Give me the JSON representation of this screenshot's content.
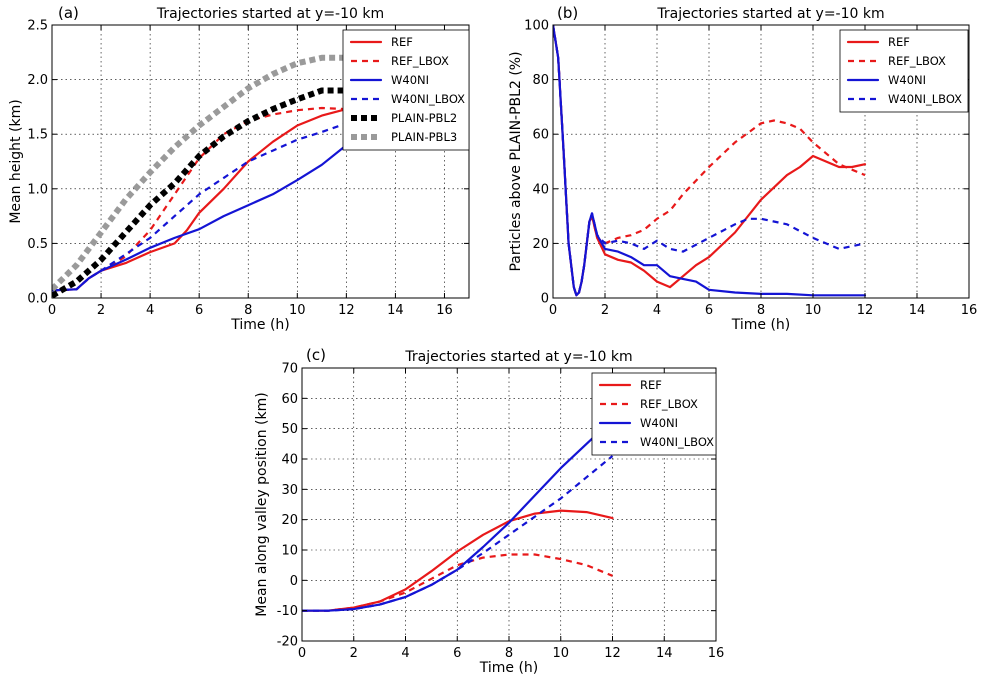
{
  "chart_data": [
    {
      "type": "line",
      "panel_label": "(a)",
      "title": "Trajectories started at y=-10 km",
      "xlabel": "Time (h)",
      "ylabel": "Mean height (km)",
      "xlim": [
        0,
        17
      ],
      "ylim": [
        0,
        2.5
      ],
      "xticks": [
        0,
        2,
        4,
        6,
        8,
        10,
        12,
        14,
        16
      ],
      "yticks": [
        0.0,
        0.5,
        1.0,
        1.5,
        2.0,
        2.5
      ],
      "ytick_labels": [
        "0.0",
        "0.5",
        "1.0",
        "1.5",
        "2.0",
        "2.5"
      ],
      "grid": true,
      "legend_position": "top-right",
      "series": [
        {
          "name": "REF",
          "color": "#e8191a",
          "style": "solid",
          "x": [
            0,
            1,
            1.5,
            2,
            3,
            4,
            5,
            5.5,
            6,
            7,
            8,
            9,
            10,
            11,
            12
          ],
          "y": [
            0.07,
            0.08,
            0.18,
            0.25,
            0.32,
            0.42,
            0.5,
            0.62,
            0.78,
            1.0,
            1.25,
            1.43,
            1.58,
            1.67,
            1.73
          ]
        },
        {
          "name": "REF_LBOX",
          "color": "#e8191a",
          "style": "dashed",
          "x": [
            0,
            1,
            1.5,
            2,
            3,
            4,
            5,
            6,
            7,
            8,
            9,
            10,
            11,
            12
          ],
          "y": [
            0.07,
            0.08,
            0.18,
            0.25,
            0.38,
            0.62,
            0.95,
            1.28,
            1.5,
            1.62,
            1.68,
            1.72,
            1.74,
            1.73
          ]
        },
        {
          "name": "W40NI",
          "color": "#1414d4",
          "style": "solid",
          "x": [
            0,
            1,
            1.5,
            2,
            3,
            4,
            5,
            6,
            7,
            8,
            9,
            10,
            11,
            12
          ],
          "y": [
            0.07,
            0.08,
            0.18,
            0.25,
            0.35,
            0.46,
            0.55,
            0.63,
            0.75,
            0.85,
            0.95,
            1.08,
            1.22,
            1.4
          ]
        },
        {
          "name": "W40NI_LBOX",
          "color": "#1414d4",
          "style": "dashed",
          "x": [
            0,
            1,
            1.5,
            2,
            3,
            4,
            5,
            6,
            7,
            8,
            9,
            10,
            11,
            12
          ],
          "y": [
            0.07,
            0.08,
            0.18,
            0.25,
            0.4,
            0.55,
            0.75,
            0.95,
            1.1,
            1.25,
            1.35,
            1.45,
            1.52,
            1.6
          ]
        },
        {
          "name": "PLAIN-PBL2",
          "color": "#000000",
          "style": "thick-dotted",
          "x": [
            0,
            1,
            2,
            3,
            4,
            5,
            6,
            7,
            8,
            9,
            10,
            11,
            12
          ],
          "y": [
            0.02,
            0.15,
            0.35,
            0.6,
            0.85,
            1.05,
            1.3,
            1.48,
            1.62,
            1.73,
            1.82,
            1.9,
            1.9
          ]
        },
        {
          "name": "PLAIN-PBL3",
          "color": "#9a9a9a",
          "style": "thick-dotted",
          "x": [
            0,
            1,
            2,
            3,
            4,
            5,
            6,
            7,
            8,
            9,
            10,
            11,
            12
          ],
          "y": [
            0.08,
            0.3,
            0.6,
            0.9,
            1.15,
            1.38,
            1.58,
            1.75,
            1.92,
            2.05,
            2.15,
            2.2,
            2.2
          ]
        }
      ]
    },
    {
      "type": "line",
      "panel_label": "(b)",
      "title": "Trajectories started at y=-10 km",
      "xlabel": "Time (h)",
      "ylabel": "Particles above PLAIN-PBL2 (%)",
      "xlim": [
        0,
        16
      ],
      "ylim": [
        0,
        100
      ],
      "xticks": [
        0,
        2,
        4,
        6,
        8,
        10,
        12,
        14,
        16
      ],
      "yticks": [
        0,
        20,
        40,
        60,
        80,
        100
      ],
      "grid": true,
      "legend_position": "top-right",
      "series": [
        {
          "name": "REF",
          "color": "#e8191a",
          "style": "solid",
          "x": [
            0,
            0.2,
            0.4,
            0.6,
            0.8,
            0.9,
            1.0,
            1.1,
            1.2,
            1.3,
            1.4,
            1.5,
            1.7,
            2.0,
            2.5,
            3.0,
            3.5,
            4.0,
            4.5,
            5.0,
            5.5,
            6.0,
            7.0,
            8.0,
            9.0,
            9.5,
            10.0,
            10.5,
            11.0,
            11.5,
            12.0
          ],
          "y": [
            100,
            88,
            55,
            20,
            4,
            1,
            2,
            6,
            12,
            20,
            28,
            30,
            22,
            16,
            14,
            13,
            10,
            6,
            4,
            8,
            12,
            15,
            24,
            36,
            45,
            48,
            52,
            50,
            48,
            48,
            49
          ]
        },
        {
          "name": "REF_LBOX",
          "color": "#e8191a",
          "style": "dashed",
          "x": [
            0,
            0.2,
            0.4,
            0.6,
            0.8,
            0.9,
            1.0,
            1.1,
            1.2,
            1.3,
            1.4,
            1.5,
            1.7,
            2.0,
            2.5,
            3.0,
            3.5,
            4.0,
            4.5,
            5.0,
            6.0,
            7.0,
            8.0,
            8.5,
            9.0,
            9.5,
            10.0,
            10.5,
            11.0,
            11.5,
            12.0
          ],
          "y": [
            100,
            88,
            55,
            20,
            4,
            1,
            2,
            6,
            12,
            20,
            28,
            30,
            22,
            20,
            22,
            23,
            25,
            29,
            32,
            38,
            48,
            57,
            64,
            65,
            64,
            62,
            57,
            53,
            49,
            47,
            45
          ]
        },
        {
          "name": "W40NI",
          "color": "#1414d4",
          "style": "solid",
          "x": [
            0,
            0.2,
            0.4,
            0.6,
            0.8,
            0.9,
            1.0,
            1.1,
            1.2,
            1.3,
            1.4,
            1.5,
            1.7,
            2.0,
            2.5,
            3.0,
            3.5,
            4.0,
            4.5,
            5.0,
            5.5,
            6.0,
            7.0,
            8.0,
            9.0,
            10.0,
            11.0,
            12.0
          ],
          "y": [
            100,
            88,
            55,
            20,
            4,
            1,
            2,
            6,
            12,
            20,
            28,
            31,
            23,
            18,
            17,
            15,
            12,
            12,
            8,
            7,
            6,
            3,
            2,
            1.5,
            1.5,
            1,
            1,
            1
          ]
        },
        {
          "name": "W40NI_LBOX",
          "color": "#1414d4",
          "style": "dashed",
          "x": [
            0,
            0.2,
            0.4,
            0.6,
            0.8,
            0.9,
            1.0,
            1.1,
            1.2,
            1.3,
            1.4,
            1.5,
            1.7,
            2.0,
            2.5,
            3.0,
            3.5,
            4.0,
            4.5,
            5.0,
            6.0,
            7.0,
            7.5,
            8.0,
            9.0,
            10.0,
            11.0,
            12.0
          ],
          "y": [
            100,
            88,
            55,
            20,
            4,
            1,
            2,
            6,
            12,
            20,
            28,
            31,
            23,
            20,
            21,
            20,
            18,
            21,
            18,
            17,
            22,
            27,
            29,
            29,
            27,
            22,
            18,
            20
          ]
        }
      ]
    },
    {
      "type": "line",
      "panel_label": "(c)",
      "title": "Trajectories started at y=-10 km",
      "xlabel": "Time (h)",
      "ylabel": "Mean along valley position (km)",
      "xlim": [
        0,
        16
      ],
      "ylim": [
        -20,
        70
      ],
      "xticks": [
        0,
        2,
        4,
        6,
        8,
        10,
        12,
        14,
        16
      ],
      "yticks": [
        -20,
        -10,
        0,
        10,
        20,
        30,
        40,
        50,
        60,
        70
      ],
      "grid": true,
      "legend_position": "top-right",
      "series": [
        {
          "name": "REF",
          "color": "#e8191a",
          "style": "solid",
          "x": [
            0,
            1,
            2,
            3,
            4,
            5,
            6,
            7,
            8,
            9,
            10,
            11,
            12
          ],
          "y": [
            -10,
            -10,
            -9,
            -7,
            -3,
            3,
            9.5,
            15,
            19.5,
            22,
            23,
            22.5,
            20.5
          ]
        },
        {
          "name": "REF_LBOX",
          "color": "#e8191a",
          "style": "dashed",
          "x": [
            0,
            1,
            2,
            3,
            4,
            5,
            6,
            7,
            8,
            9,
            10,
            11,
            12
          ],
          "y": [
            -10,
            -10,
            -9,
            -7,
            -4,
            0.5,
            5,
            7.5,
            8.5,
            8.5,
            7,
            5,
            1.5
          ]
        },
        {
          "name": "W40NI",
          "color": "#1414d4",
          "style": "solid",
          "x": [
            0,
            1,
            2,
            3,
            4,
            5,
            6,
            7,
            8,
            9,
            10,
            11,
            12
          ],
          "y": [
            -10,
            -10,
            -9.5,
            -8,
            -5.5,
            -1.5,
            3.5,
            11,
            19,
            28,
            37,
            45,
            53
          ]
        },
        {
          "name": "W40NI_LBOX",
          "color": "#1414d4",
          "style": "dashed",
          "x": [
            0,
            1,
            2,
            3,
            4,
            5,
            6,
            7,
            8,
            9,
            10,
            11,
            12
          ],
          "y": [
            -10,
            -10,
            -9.5,
            -8,
            -5.5,
            -1.5,
            3.5,
            9,
            15,
            21,
            27,
            34,
            41
          ]
        }
      ]
    }
  ]
}
